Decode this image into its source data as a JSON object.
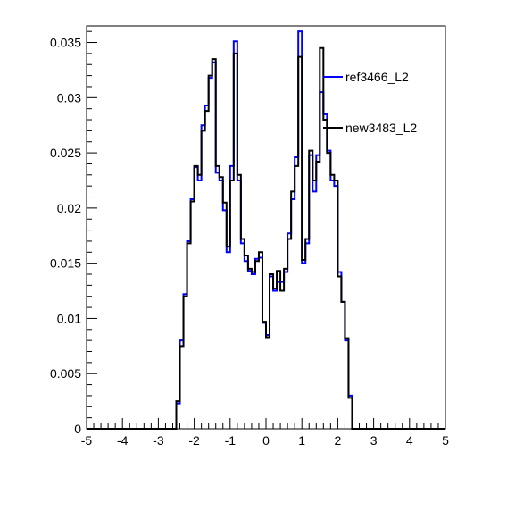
{
  "chart_data": {
    "type": "histogram",
    "title": "",
    "xlabel": "",
    "ylabel": "",
    "xlim": [
      -5,
      5
    ],
    "ylim": [
      0,
      0.0365
    ],
    "x_ticks": [
      -5,
      -4,
      -3,
      -2,
      -1,
      0,
      1,
      2,
      3,
      4,
      5
    ],
    "y_ticks": [
      0,
      0.005,
      0.01,
      0.015,
      0.02,
      0.025,
      0.03,
      0.035
    ],
    "y_tick_labels": [
      "0",
      "0.005",
      "0.01",
      "0.015",
      "0.02",
      "0.025",
      "0.03",
      "0.035"
    ],
    "bin_edges_start": -5,
    "bin_width": 0.1,
    "legend": {
      "placement": "top-right"
    },
    "series": [
      {
        "name": "ref3466_L2",
        "color": "#0000ff",
        "values": [
          0,
          0,
          0,
          0,
          0,
          0,
          0,
          0,
          0,
          0,
          0,
          0,
          0,
          0,
          0,
          0,
          0,
          0,
          0,
          0,
          0,
          0,
          0,
          0,
          0,
          0.0023,
          0.008,
          0.0122,
          0.017,
          0.0208,
          0.0237,
          0.0225,
          0.0275,
          0.0293,
          0.0318,
          0.0332,
          0.0232,
          0.0225,
          0.0198,
          0.016,
          0.0238,
          0.0351,
          0.0225,
          0.0168,
          0.0152,
          0.0143,
          0.014,
          0.0154,
          0.0155,
          0.0096,
          0.0085,
          0.0138,
          0.0125,
          0.0133,
          0.0133,
          0.0142,
          0.0177,
          0.0208,
          0.0246,
          0.036,
          0.015,
          0.0168,
          0.0248,
          0.0215,
          0.0248,
          0.0305,
          0.0285,
          0.0252,
          0.0225,
          0.022,
          0.0142,
          0.0115,
          0.008,
          0.003,
          0,
          0,
          0,
          0,
          0,
          0,
          0,
          0,
          0,
          0,
          0,
          0,
          0,
          0,
          0,
          0,
          0,
          0,
          0,
          0,
          0,
          0,
          0,
          0,
          0,
          0
        ]
      },
      {
        "name": "new3483_L2",
        "color": "#000000",
        "values": [
          0,
          0,
          0,
          0,
          0,
          0,
          0,
          0,
          0,
          0,
          0,
          0,
          0,
          0,
          0,
          0,
          0,
          0,
          0,
          0,
          0,
          0,
          0,
          0,
          0,
          0.0025,
          0.0075,
          0.012,
          0.0168,
          0.0206,
          0.0238,
          0.023,
          0.027,
          0.0288,
          0.032,
          0.0335,
          0.0238,
          0.0228,
          0.0205,
          0.0165,
          0.0225,
          0.034,
          0.023,
          0.0172,
          0.0157,
          0.0145,
          0.0142,
          0.0152,
          0.016,
          0.0097,
          0.0083,
          0.014,
          0.0127,
          0.0143,
          0.0125,
          0.0145,
          0.0172,
          0.0215,
          0.0238,
          0.0337,
          0.0153,
          0.0172,
          0.0252,
          0.0225,
          0.0242,
          0.0345,
          0.028,
          0.025,
          0.023,
          0.0225,
          0.0138,
          0.0115,
          0.0082,
          0.0028,
          0,
          0,
          0,
          0,
          0,
          0,
          0,
          0,
          0,
          0,
          0,
          0,
          0,
          0,
          0,
          0,
          0,
          0,
          0,
          0,
          0,
          0,
          0,
          0,
          0,
          0
        ]
      }
    ]
  }
}
